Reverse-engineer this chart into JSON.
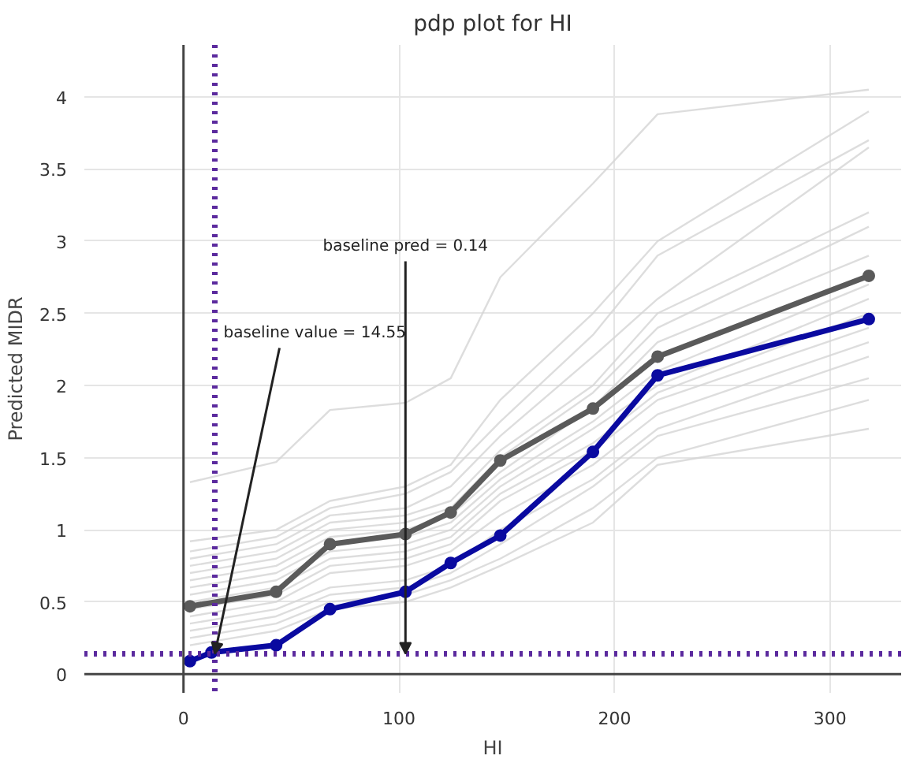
{
  "chart_data": {
    "type": "line",
    "title": "pdp plot for HI",
    "xlabel": "HI",
    "ylabel": "Predicted MIDR",
    "x": [
      3,
      43,
      68,
      103,
      124,
      147,
      190,
      220,
      318
    ],
    "xlim": [
      -46,
      333
    ],
    "ylim": [
      -0.13,
      4.36
    ],
    "xticks": [
      0,
      100,
      200,
      300
    ],
    "yticks": [
      0,
      0.5,
      1,
      1.5,
      2,
      2.5,
      3,
      3.5,
      4
    ],
    "grid": true,
    "series": [
      {
        "color": "#d4d4d4",
        "marker": "none",
        "values": [
          1.33,
          1.47,
          1.83,
          1.88,
          2.05,
          2.75,
          3.4,
          3.88,
          4.05
        ]
      },
      {
        "color": "#d4d4d4",
        "marker": "none",
        "values": [
          0.92,
          1.0,
          1.2,
          1.3,
          1.45,
          1.9,
          2.5,
          3.0,
          3.9
        ]
      },
      {
        "color": "#d4d4d4",
        "marker": "none",
        "values": [
          0.85,
          0.95,
          1.15,
          1.25,
          1.4,
          1.75,
          2.35,
          2.9,
          3.7
        ]
      },
      {
        "color": "#d4d4d4",
        "marker": "none",
        "values": [
          0.8,
          0.9,
          1.1,
          1.15,
          1.3,
          1.65,
          2.2,
          2.6,
          3.65
        ]
      },
      {
        "color": "#d4d4d4",
        "marker": "none",
        "values": [
          0.75,
          0.85,
          1.05,
          1.1,
          1.2,
          1.55,
          2.0,
          2.5,
          3.2
        ]
      },
      {
        "color": "#d4d4d4",
        "marker": "none",
        "values": [
          0.7,
          0.8,
          1.0,
          1.05,
          1.15,
          1.5,
          1.95,
          2.4,
          3.1
        ]
      },
      {
        "color": "#d4d4d4",
        "marker": "none",
        "values": [
          0.65,
          0.75,
          0.95,
          1.0,
          1.1,
          1.4,
          1.85,
          2.3,
          2.9
        ]
      },
      {
        "color": "#d4d4d4",
        "marker": "none",
        "values": [
          0.6,
          0.7,
          0.9,
          0.95,
          1.05,
          1.35,
          1.75,
          2.1,
          2.7
        ]
      },
      {
        "color": "#d4d4d4",
        "marker": "none",
        "values": [
          0.55,
          0.65,
          0.85,
          0.9,
          1.0,
          1.3,
          1.7,
          2.0,
          2.6
        ]
      },
      {
        "color": "#d4d4d4",
        "marker": "none",
        "values": [
          0.5,
          0.6,
          0.8,
          0.85,
          0.95,
          1.25,
          1.6,
          1.95,
          2.5
        ]
      },
      {
        "color": "#d4d4d4",
        "marker": "none",
        "values": [
          0.45,
          0.55,
          0.75,
          0.8,
          0.9,
          1.2,
          1.55,
          1.9,
          2.4
        ]
      },
      {
        "color": "#d4d4d4",
        "marker": "none",
        "values": [
          0.4,
          0.5,
          0.7,
          0.75,
          0.85,
          1.1,
          1.45,
          1.8,
          2.3
        ]
      },
      {
        "color": "#d4d4d4",
        "marker": "none",
        "values": [
          0.35,
          0.45,
          0.6,
          0.65,
          0.75,
          1.0,
          1.35,
          1.7,
          2.2
        ]
      },
      {
        "color": "#d4d4d4",
        "marker": "none",
        "values": [
          0.3,
          0.4,
          0.55,
          0.6,
          0.7,
          0.9,
          1.3,
          1.65,
          2.05
        ]
      },
      {
        "color": "#d4d4d4",
        "marker": "none",
        "values": [
          0.25,
          0.35,
          0.5,
          0.55,
          0.65,
          0.8,
          1.15,
          1.5,
          1.9
        ]
      },
      {
        "color": "#d4d4d4",
        "marker": "none",
        "values": [
          0.2,
          0.3,
          0.45,
          0.5,
          0.6,
          0.75,
          1.05,
          1.45,
          1.7
        ]
      },
      {
        "color": "#5a5a5a",
        "marker": "circle",
        "values": [
          0.47,
          0.57,
          0.9,
          0.97,
          1.12,
          1.48,
          1.84,
          2.2,
          2.76
        ]
      },
      {
        "color": "#0a0aa0",
        "marker": "circle",
        "x": [
          3,
          13,
          43,
          68,
          103,
          124,
          147,
          190,
          220,
          318
        ],
        "values": [
          0.09,
          0.15,
          0.2,
          0.45,
          0.57,
          0.77,
          0.96,
          1.54,
          2.07,
          2.46
        ]
      }
    ],
    "ref_lines": [
      {
        "axis": "x",
        "value": 14.55,
        "color": "#5b2a9e",
        "line_style": "dotted"
      },
      {
        "axis": "y",
        "value": 0.14,
        "color": "#5b2a9e",
        "line_style": "dotted"
      }
    ],
    "annotations": [
      {
        "text": "baseline value = 14.55",
        "x": 14.55,
        "y": 0.14
      },
      {
        "text": "baseline pred = 0.14",
        "x": 103,
        "y": 0.14
      }
    ]
  }
}
